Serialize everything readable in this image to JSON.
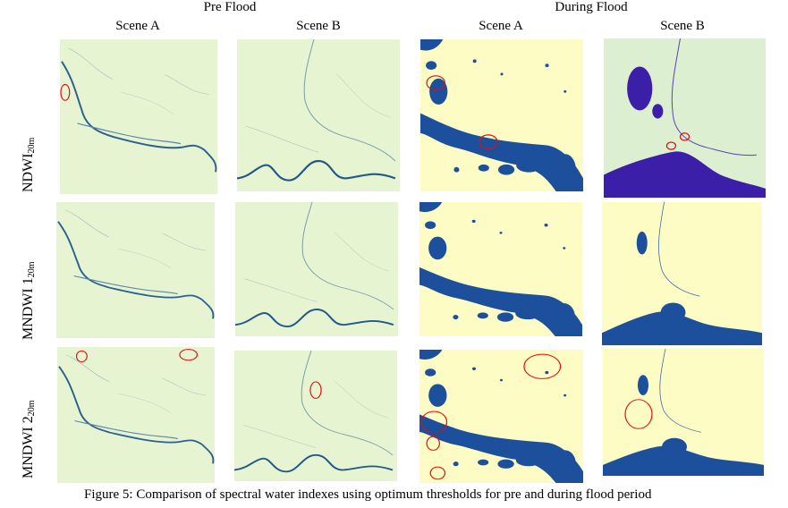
{
  "header": {
    "groups": [
      {
        "label": "Pre Flood"
      },
      {
        "label": "During Flood"
      }
    ],
    "scenes": [
      "Scene A",
      "Scene B",
      "Scene A",
      "Scene B"
    ]
  },
  "rows": [
    {
      "label": "NDWI",
      "sub": "20m"
    },
    {
      "label": "MNDWI 1",
      "sub": "20m"
    },
    {
      "label": "MNDWI 2",
      "sub": "20m"
    }
  ],
  "colors": {
    "pre_bg": "#e6f4d2",
    "during_bg": "#fdfcc4",
    "water": "#1c4f9c",
    "water_purple": "#3b1fa8",
    "ndwi_b_bg": "#dcefd0",
    "annotation": "#e01010"
  },
  "caption": "Figure 5: Comparison of spectral water indexes using optimum thresholds for pre and during flood period"
}
